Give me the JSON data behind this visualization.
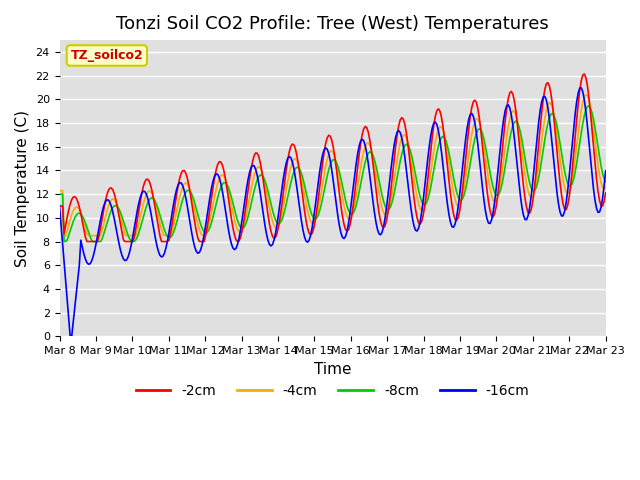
{
  "title": "Tonzi Soil CO2 Profile: Tree (West) Temperatures",
  "xlabel": "Time",
  "ylabel": "Soil Temperature (C)",
  "legend_label": "TZ_soilco2",
  "series_labels": [
    "-2cm",
    "-4cm",
    "-8cm",
    "-16cm"
  ],
  "series_colors": [
    "#ff0000",
    "#ffaa00",
    "#00cc00",
    "#0000ff"
  ],
  "ylim": [
    0,
    25
  ],
  "yticks": [
    0,
    2,
    4,
    6,
    8,
    10,
    12,
    14,
    16,
    18,
    20,
    22,
    24
  ],
  "background_color": "#e0e0e0",
  "title_fontsize": 13,
  "axis_label_fontsize": 11,
  "tick_fontsize": 8,
  "num_days": 15,
  "x_tick_labels": [
    "Mar 8",
    "Mar 9",
    "Mar 10",
    "Mar 11",
    "Mar 12",
    "Mar 13",
    "Mar 14",
    "Mar 15",
    "Mar 16",
    "Mar 17",
    "Mar 18",
    "Mar 19",
    "Mar 20",
    "Mar 21",
    "Mar 22",
    "Mar 23"
  ],
  "line_width": 1.2
}
